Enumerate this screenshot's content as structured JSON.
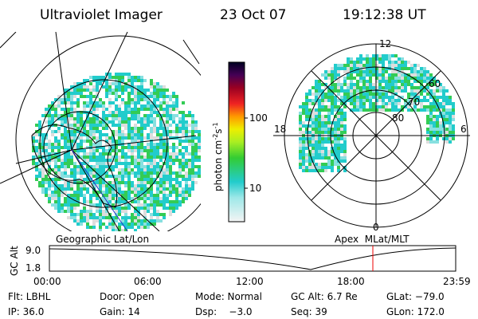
{
  "header": {
    "instrument": "Ultraviolet Imager",
    "date": "23 Oct 07",
    "time": "19:12:38 UT"
  },
  "colorbar": {
    "label": "photon cm",
    "exp1": "-2",
    "unit2": "s",
    "exp2": "-1",
    "ticks": [
      "100",
      "10"
    ]
  },
  "polar": {
    "labels": {
      "top": "12",
      "left": "18",
      "right": "6",
      "bottom": "0"
    },
    "rings": [
      "60",
      "70",
      "80"
    ]
  },
  "panels": {
    "left": "Geographic Lat/Lon",
    "right": "Apex  MLat/MLT"
  },
  "timeline": {
    "axis_label": "GC Alt",
    "y_labels": [
      "9.0",
      "1.8"
    ],
    "x_labels": [
      "00:00",
      "06:00",
      "12:00",
      "18:00",
      "23:59"
    ]
  },
  "footer": {
    "rows": [
      [
        "Flt: LBHL",
        "Door: Open",
        "Mode: Normal",
        "GC Alt: 6.7 Re",
        "GLat: −79.0"
      ],
      [
        "IP: 36.0",
        "Gain: 14",
        "Dsp:    −3.0",
        "Seq: 39",
        "GLon: 172.0"
      ]
    ]
  }
}
